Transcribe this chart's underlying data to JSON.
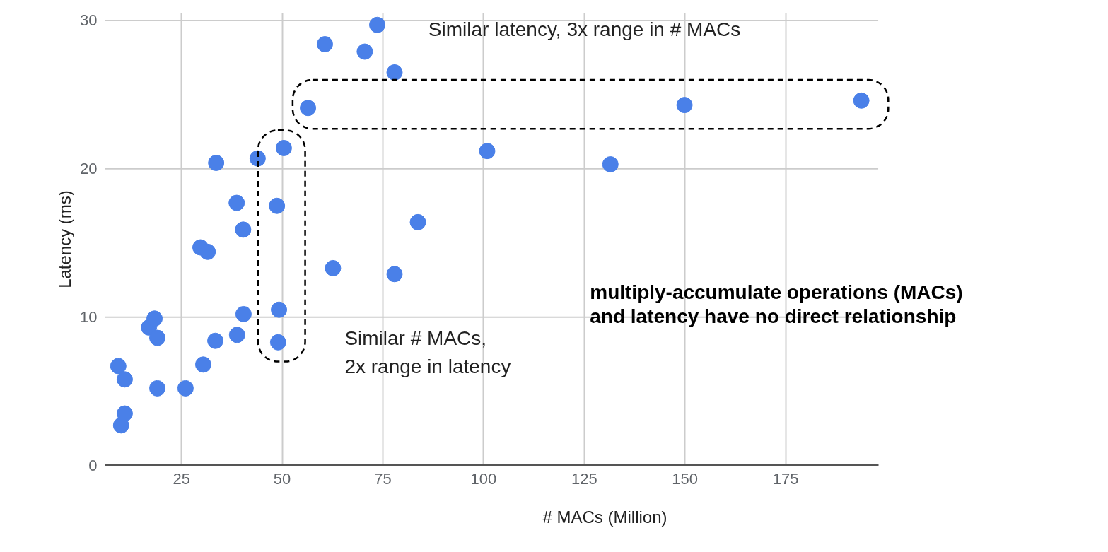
{
  "chart_data": {
    "type": "scatter",
    "xlabel": "# MACs (Million)",
    "ylabel": "Latency (ms)",
    "x": [
      10.0,
      10.9,
      9.3,
      10.9,
      16.9,
      18.3,
      19.0,
      19.0,
      26.0,
      30.4,
      33.4,
      38.8,
      40.4,
      49.0,
      49.2,
      29.7,
      31.5,
      40.3,
      38.7,
      33.6,
      43.9,
      50.4,
      48.7,
      56.4,
      60.6,
      70.5,
      73.6,
      77.9,
      62.6,
      77.9,
      83.7,
      100.9,
      131.5,
      149.9,
      193.8
    ],
    "values": [
      2.7,
      3.5,
      6.7,
      5.8,
      9.3,
      9.9,
      8.6,
      5.2,
      5.2,
      6.8,
      8.4,
      8.8,
      10.2,
      8.3,
      10.5,
      14.7,
      14.4,
      15.9,
      17.7,
      20.4,
      20.7,
      21.4,
      17.5,
      24.1,
      28.4,
      27.9,
      29.7,
      26.5,
      13.3,
      12.9,
      16.4,
      21.2,
      20.3,
      24.3,
      24.6
    ],
    "color": "#4a80e8",
    "marker": "circle",
    "xlim": [
      6,
      198
    ],
    "ylim": [
      0,
      30.5
    ],
    "xticks": [
      25,
      50,
      75,
      100,
      125,
      150,
      175
    ],
    "yticks": [
      0,
      10,
      20,
      30
    ],
    "grid": true,
    "annotations": [
      "Similar latency, 3x range in # MACs",
      "Similar # MACs,\n2x range in latency",
      "multiply-accumulate operations (MACs)\nand latency have no direct relationship"
    ]
  }
}
